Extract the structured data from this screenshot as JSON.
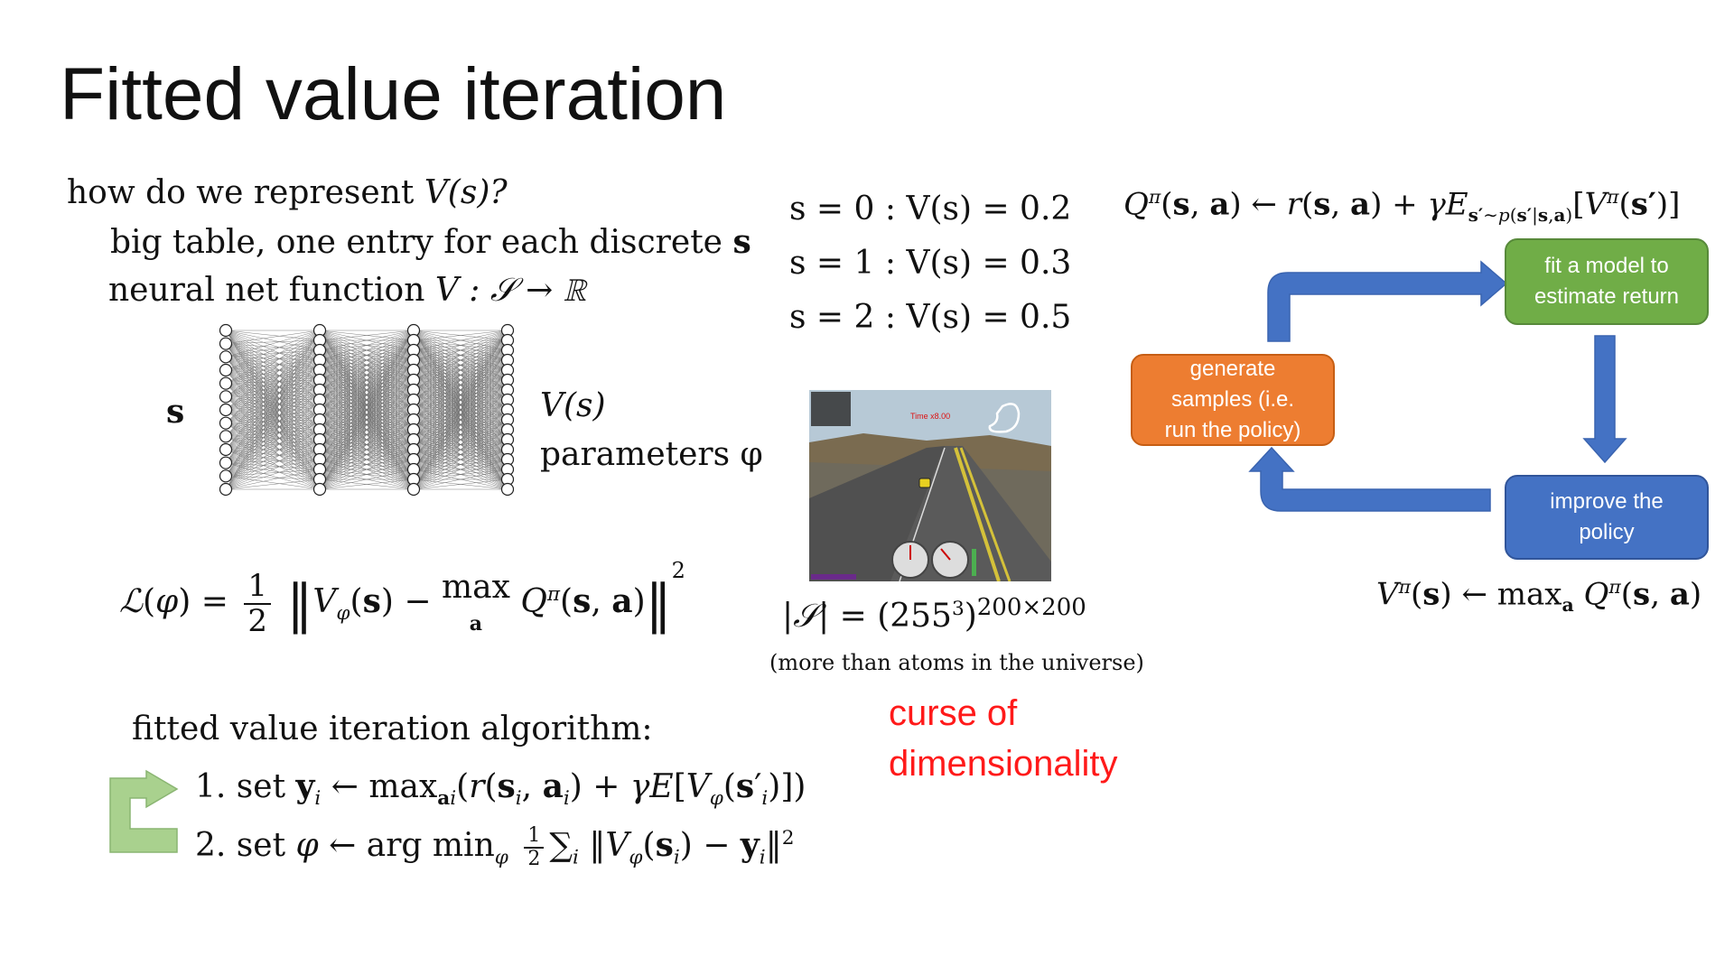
{
  "title": "Fitted value iteration",
  "left": {
    "question": "how do we represent",
    "question_math": "V(s)?",
    "option1": "big table, one entry for each discrete",
    "option1_var": "s",
    "option2": "neural net function",
    "option2_math": "V : 𝒮 → ℝ",
    "nn_input": "s",
    "nn_output": "V(s)",
    "nn_params": "parameters φ",
    "loss": "ℒ(φ) = ½ ‖V_φ(s) − max_a Q^π(s,a)‖²"
  },
  "table": {
    "rows": [
      "s = 0 : V(s) = 0.2",
      "s = 1 : V(s) = 0.3",
      "s = 2 : V(s) = 0.5"
    ]
  },
  "game": {
    "hud_time": "Time x8.00"
  },
  "state_space": {
    "formula": "|𝒮| = (255³)^200×200",
    "note": "(more than atoms in the universe)",
    "curse_line1": "curse of",
    "curse_line2": "dimensionality"
  },
  "algorithm": {
    "heading": "fitted value iteration algorithm:",
    "step1": "1. set y_i ← max_{a_i}(r(s_i,a_i) + γE[V_φ(s′_i)])",
    "step2": "2. set φ ← arg min_φ ½ Σ_i ‖V_φ(s_i) − y_i‖²"
  },
  "diagram": {
    "q_update": "Q^π(s,a) ← r(s,a) + γE_{s′∼p(s′|s,a)}[V^π(s′)]",
    "v_update": "V^π(s) ← max_a Q^π(s,a)",
    "box_generate": [
      "generate",
      "samples (i.e.",
      "run the policy)"
    ],
    "box_fit": [
      "fit a model to",
      "estimate return"
    ],
    "box_improve": [
      "improve the",
      "policy"
    ],
    "colors": {
      "orange": "#ed7d31",
      "green": "#70ad47",
      "blue": "#4472c4",
      "arrow": "#4472c4",
      "cycle_arrow": "#a9d18e"
    }
  }
}
